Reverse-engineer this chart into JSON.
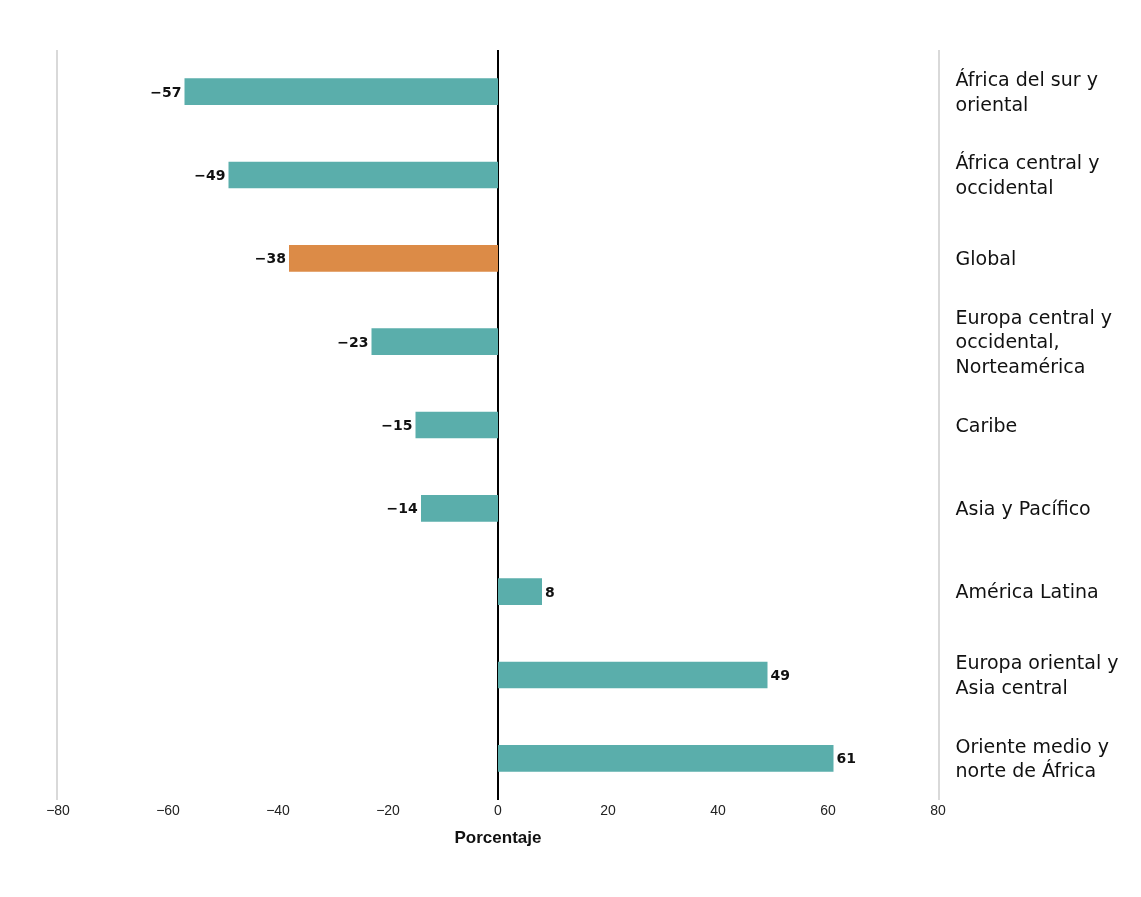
{
  "chart_data": {
    "type": "bar",
    "orientation": "horizontal",
    "xlabel": "Porcentaje",
    "categories": [
      "África del sur y oriental",
      "África central y occidental",
      "Global",
      "Europa central y occidental, Norteamérica",
      "Caribe",
      "Asia y Pacífico",
      "América Latina",
      "Europa oriental y Asia central",
      "Oriente medio y norte de África"
    ],
    "values": [
      -57,
      -49,
      -38,
      -23,
      -15,
      -14,
      8,
      49,
      61
    ],
    "value_labels": [
      "−57",
      "−49",
      "−38",
      "−23",
      "−15",
      "−14",
      "8",
      "49",
      "61"
    ],
    "colors": [
      "#5aaeab",
      "#5aaeab",
      "#dc8b47",
      "#5aaeab",
      "#5aaeab",
      "#5aaeab",
      "#5aaeab",
      "#5aaeab",
      "#5aaeab"
    ],
    "xlim": [
      -80,
      80
    ],
    "xticks": [
      -80,
      -60,
      -40,
      -20,
      0,
      20,
      40,
      60,
      80
    ]
  }
}
